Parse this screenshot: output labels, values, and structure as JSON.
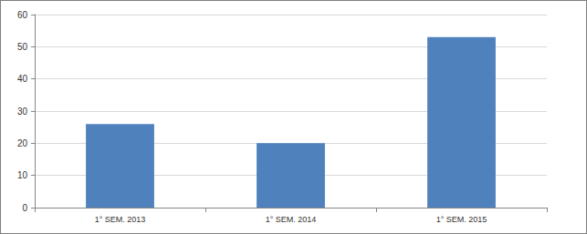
{
  "chart_data": {
    "type": "bar",
    "categories": [
      "1° SEM. 2013",
      "1° SEM. 2014",
      "1° SEM. 2015"
    ],
    "values": [
      26,
      20,
      53
    ],
    "color": "#4f81bd",
    "ylim": [
      0,
      60
    ],
    "yticks": [
      0,
      10,
      20,
      30,
      40,
      50,
      60
    ],
    "grid": true
  }
}
